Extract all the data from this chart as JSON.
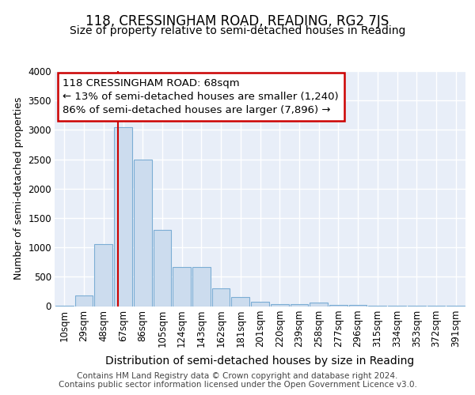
{
  "title": "118, CRESSINGHAM ROAD, READING, RG2 7JS",
  "subtitle": "Size of property relative to semi-detached houses in Reading",
  "xlabel": "Distribution of semi-detached houses by size in Reading",
  "ylabel": "Number of semi-detached properties",
  "bar_labels": [
    "10sqm",
    "29sqm",
    "48sqm",
    "67sqm",
    "86sqm",
    "105sqm",
    "124sqm",
    "143sqm",
    "162sqm",
    "181sqm",
    "201sqm",
    "220sqm",
    "239sqm",
    "258sqm",
    "277sqm",
    "296sqm",
    "315sqm",
    "334sqm",
    "353sqm",
    "372sqm",
    "391sqm"
  ],
  "bar_values": [
    5,
    175,
    1060,
    3040,
    2500,
    1300,
    670,
    660,
    300,
    160,
    80,
    35,
    30,
    55,
    25,
    15,
    8,
    5,
    12,
    4,
    4
  ],
  "bar_color": "#ccdcee",
  "bar_edge_color": "#7badd4",
  "background_color": "#e8eef8",
  "grid_color": "#ffffff",
  "annotation_line1": "118 CRESSINGHAM ROAD: 68sqm",
  "annotation_line2": "← 13% of semi-detached houses are smaller (1,240)",
  "annotation_line3": "86% of semi-detached houses are larger (7,896) →",
  "red_line_color": "#cc0000",
  "red_box_color": "#cc0000",
  "ylim": [
    0,
    4000
  ],
  "yticks": [
    0,
    500,
    1000,
    1500,
    2000,
    2500,
    3000,
    3500,
    4000
  ],
  "footer_text": "Contains HM Land Registry data © Crown copyright and database right 2024.\nContains public sector information licensed under the Open Government Licence v3.0.",
  "title_fontsize": 12,
  "subtitle_fontsize": 10,
  "xlabel_fontsize": 10,
  "ylabel_fontsize": 9,
  "tick_fontsize": 8.5,
  "annotation_fontsize": 9.5,
  "footer_fontsize": 7.5
}
